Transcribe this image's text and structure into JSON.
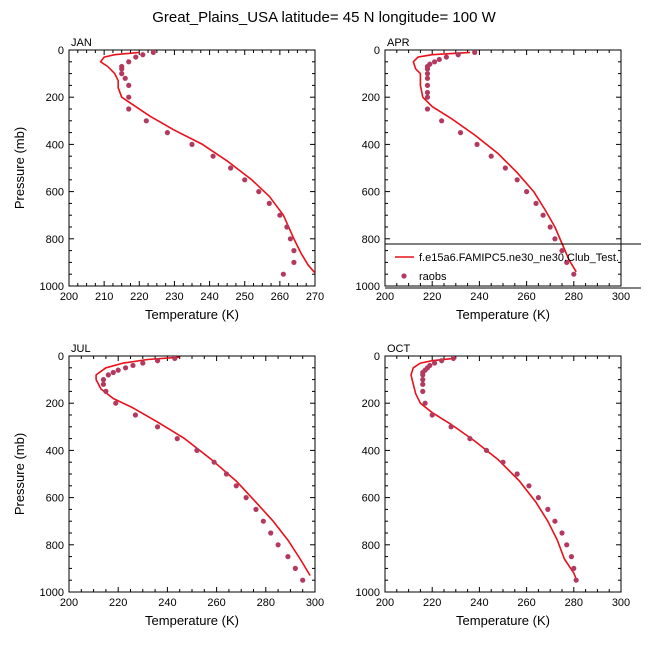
{
  "figure": {
    "title": "Great_Plains_USA  latitude= 45 N longitude= 100 W"
  },
  "legend": {
    "model_label": "f.e15a6.FAMIPC5.ne30_ne30.Club_Test.",
    "obs_label": "raobs",
    "placement": "right of APR panel, lower portion"
  },
  "colors": {
    "model_line": "#e8101a",
    "obs_marker": "#b33a5e"
  },
  "chart_data": [
    {
      "type": "line",
      "panel_label": "JAN",
      "xlabel": "Temperature (K)",
      "ylabel": "Pressure (mb)",
      "xlim": [
        200,
        270
      ],
      "ylim": [
        1000,
        0
      ],
      "y_reversed": true,
      "xticks": [
        200,
        210,
        220,
        230,
        240,
        250,
        260,
        270
      ],
      "yticks": [
        0,
        200,
        400,
        600,
        800,
        1000
      ],
      "grid": false,
      "series": [
        {
          "name": "f.e15a6.FAMIPC5.ne30_ne30.Club_Test.",
          "style": "line",
          "points": [
            [
              220,
              10
            ],
            [
              213,
              20
            ],
            [
              210,
              30
            ],
            [
              209,
              50
            ],
            [
              211,
              70
            ],
            [
              213,
              100
            ],
            [
              214,
              130
            ],
            [
              214,
              160
            ],
            [
              215,
              200
            ],
            [
              218,
              230
            ],
            [
              223,
              280
            ],
            [
              230,
              340
            ],
            [
              238,
              400
            ],
            [
              245,
              470
            ],
            [
              252,
              550
            ],
            [
              257,
              620
            ],
            [
              261,
              700
            ],
            [
              264,
              800
            ],
            [
              266,
              860
            ],
            [
              268,
              910
            ],
            [
              270,
              945
            ]
          ]
        },
        {
          "name": "raobs",
          "style": "markers",
          "points": [
            [
              224,
              10
            ],
            [
              221,
              20
            ],
            [
              219,
              30
            ],
            [
              217,
              50
            ],
            [
              215,
              70
            ],
            [
              215,
              80
            ],
            [
              215,
              100
            ],
            [
              216,
              120
            ],
            [
              217,
              150
            ],
            [
              217,
              200
            ],
            [
              217,
              250
            ],
            [
              222,
              300
            ],
            [
              228,
              350
            ],
            [
              235,
              400
            ],
            [
              241,
              450
            ],
            [
              246,
              500
            ],
            [
              250,
              550
            ],
            [
              254,
              600
            ],
            [
              257,
              650
            ],
            [
              260,
              700
            ],
            [
              262,
              750
            ],
            [
              263,
              800
            ],
            [
              264,
              850
            ],
            [
              264,
              900
            ],
            [
              261,
              950
            ]
          ]
        }
      ]
    },
    {
      "type": "line",
      "panel_label": "APR",
      "xlabel": "Temperature (K)",
      "ylabel": "",
      "xlim": [
        200,
        300
      ],
      "ylim": [
        1000,
        0
      ],
      "y_reversed": true,
      "xticks": [
        200,
        220,
        240,
        260,
        280,
        300
      ],
      "yticks": [
        0,
        200,
        400,
        600,
        800,
        1000
      ],
      "grid": false,
      "series": [
        {
          "name": "f.e15a6.FAMIPC5.ne30_ne30.Club_Test.",
          "style": "line",
          "points": [
            [
              236,
              10
            ],
            [
              220,
              20
            ],
            [
              214,
              30
            ],
            [
              212,
              50
            ],
            [
              213,
              80
            ],
            [
              215,
              100
            ],
            [
              215,
              150
            ],
            [
              216,
              200
            ],
            [
              220,
              240
            ],
            [
              228,
              290
            ],
            [
              238,
              360
            ],
            [
              248,
              440
            ],
            [
              256,
              520
            ],
            [
              263,
              600
            ],
            [
              268,
              680
            ],
            [
              272,
              750
            ],
            [
              275,
              820
            ],
            [
              278,
              890
            ],
            [
              281,
              940
            ]
          ]
        },
        {
          "name": "raobs",
          "style": "markers",
          "points": [
            [
              238,
              10
            ],
            [
              231,
              20
            ],
            [
              226,
              30
            ],
            [
              223,
              40
            ],
            [
              221,
              50
            ],
            [
              219,
              60
            ],
            [
              218,
              70
            ],
            [
              218,
              80
            ],
            [
              218,
              100
            ],
            [
              218,
              120
            ],
            [
              218,
              150
            ],
            [
              218,
              180
            ],
            [
              218,
              200
            ],
            [
              218,
              250
            ],
            [
              224,
              300
            ],
            [
              232,
              350
            ],
            [
              239,
              400
            ],
            [
              245,
              450
            ],
            [
              251,
              500
            ],
            [
              256,
              550
            ],
            [
              260,
              600
            ],
            [
              264,
              650
            ],
            [
              267,
              700
            ],
            [
              270,
              750
            ],
            [
              272,
              800
            ],
            [
              275,
              850
            ],
            [
              277,
              900
            ],
            [
              280,
              950
            ]
          ]
        }
      ]
    },
    {
      "type": "line",
      "panel_label": "JUL",
      "xlabel": "Temperature (K)",
      "ylabel": "Pressure (mb)",
      "xlim": [
        200,
        300
      ],
      "ylim": [
        1000,
        0
      ],
      "y_reversed": true,
      "xticks": [
        200,
        220,
        240,
        260,
        280,
        300
      ],
      "yticks": [
        0,
        200,
        400,
        600,
        800,
        1000
      ],
      "grid": false,
      "series": [
        {
          "name": "f.e15a6.FAMIPC5.ne30_ne30.Club_Test.",
          "style": "line",
          "points": [
            [
              245,
              5
            ],
            [
              232,
              15
            ],
            [
              222,
              30
            ],
            [
              215,
              50
            ],
            [
              211,
              80
            ],
            [
              211,
              100
            ],
            [
              213,
              140
            ],
            [
              218,
              180
            ],
            [
              226,
              220
            ],
            [
              236,
              280
            ],
            [
              247,
              350
            ],
            [
              258,
              440
            ],
            [
              268,
              530
            ],
            [
              276,
              620
            ],
            [
              283,
              700
            ],
            [
              289,
              780
            ],
            [
              294,
              860
            ],
            [
              298,
              930
            ]
          ]
        },
        {
          "name": "raobs",
          "style": "markers",
          "points": [
            [
              243,
              10
            ],
            [
              236,
              20
            ],
            [
              230,
              30
            ],
            [
              226,
              40
            ],
            [
              223,
              50
            ],
            [
              220,
              60
            ],
            [
              218,
              70
            ],
            [
              216,
              80
            ],
            [
              214,
              100
            ],
            [
              214,
              120
            ],
            [
              215,
              150
            ],
            [
              219,
              200
            ],
            [
              227,
              250
            ],
            [
              236,
              300
            ],
            [
              244,
              350
            ],
            [
              252,
              400
            ],
            [
              259,
              450
            ],
            [
              264,
              500
            ],
            [
              268,
              550
            ],
            [
              272,
              600
            ],
            [
              276,
              650
            ],
            [
              279,
              700
            ],
            [
              282,
              750
            ],
            [
              285,
              800
            ],
            [
              289,
              850
            ],
            [
              292,
              900
            ],
            [
              295,
              950
            ]
          ]
        }
      ]
    },
    {
      "type": "line",
      "panel_label": "OCT",
      "xlabel": "Temperature (K)",
      "ylabel": "",
      "xlim": [
        200,
        300
      ],
      "ylim": [
        1000,
        0
      ],
      "y_reversed": true,
      "xticks": [
        200,
        220,
        240,
        260,
        280,
        300
      ],
      "yticks": [
        0,
        200,
        400,
        600,
        800,
        1000
      ],
      "grid": false,
      "series": [
        {
          "name": "f.e15a6.FAMIPC5.ne30_ne30.Club_Test.",
          "style": "line",
          "points": [
            [
              229,
              10
            ],
            [
              220,
              20
            ],
            [
              215,
              30
            ],
            [
              212,
              50
            ],
            [
              211,
              80
            ],
            [
              212,
              120
            ],
            [
              213,
              160
            ],
            [
              215,
              200
            ],
            [
              220,
              240
            ],
            [
              228,
              290
            ],
            [
              238,
              360
            ],
            [
              248,
              440
            ],
            [
              257,
              530
            ],
            [
              264,
              620
            ],
            [
              269,
              700
            ],
            [
              273,
              780
            ],
            [
              276,
              860
            ],
            [
              280,
              920
            ],
            [
              281,
              945
            ]
          ]
        },
        {
          "name": "raobs",
          "style": "markers",
          "points": [
            [
              229,
              10
            ],
            [
              224,
              20
            ],
            [
              221,
              30
            ],
            [
              219,
              40
            ],
            [
              218,
              50
            ],
            [
              217,
              60
            ],
            [
              216,
              70
            ],
            [
              216,
              80
            ],
            [
              216,
              100
            ],
            [
              216,
              120
            ],
            [
              216,
              150
            ],
            [
              217,
              200
            ],
            [
              220,
              250
            ],
            [
              228,
              300
            ],
            [
              236,
              350
            ],
            [
              243,
              400
            ],
            [
              250,
              450
            ],
            [
              256,
              500
            ],
            [
              261,
              550
            ],
            [
              265,
              600
            ],
            [
              269,
              650
            ],
            [
              272,
              700
            ],
            [
              275,
              750
            ],
            [
              277,
              800
            ],
            [
              279,
              850
            ],
            [
              280,
              900
            ],
            [
              281,
              950
            ]
          ]
        }
      ]
    }
  ]
}
